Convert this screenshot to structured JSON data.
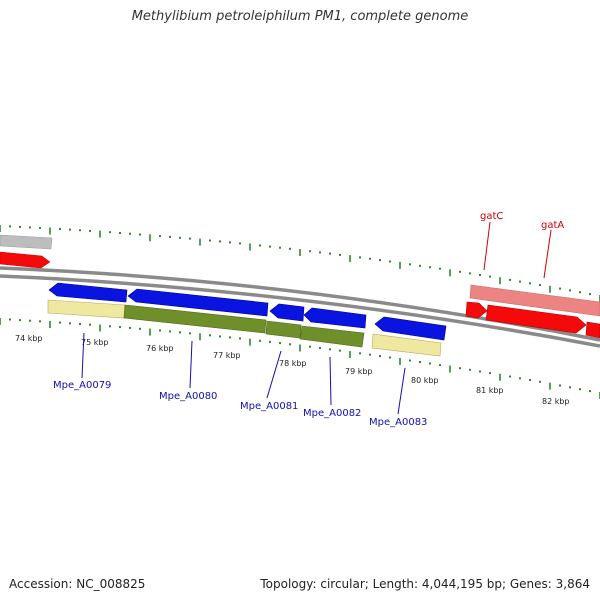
{
  "header": {
    "title": "Methylibium petroleiphilum PM1, complete genome"
  },
  "footer": {
    "accession": "Accession: NC_008825",
    "stats": "Topology: circular; Length: 4,044,195 bp; Genes: 3,864"
  },
  "colors": {
    "backbone": "#7a7a7a",
    "cds_forward": "#0a14e0",
    "cds_reverse_red": "#f40a0a",
    "rna_pink": "#ec8484",
    "grey_feature": "#bdbdbd",
    "cog_yellow": "#efe8a0",
    "cog_green": "#6f8f2a",
    "tick": "#2a8a2a",
    "label_blue": "#1010b0",
    "label_red": "#d00000"
  },
  "scale_labels": [
    "74 kbp",
    "75 kbp",
    "76 kbp",
    "77 kbp",
    "78 kbp",
    "79 kbp",
    "80 kbp",
    "81 kbp",
    "82 kbp"
  ],
  "gene_labels": [
    {
      "text": "Mpe_A0079",
      "color": "blue"
    },
    {
      "text": "Mpe_A0080",
      "color": "blue"
    },
    {
      "text": "Mpe_A0081",
      "color": "blue"
    },
    {
      "text": "Mpe_A0082",
      "color": "blue"
    },
    {
      "text": "Mpe_A0083",
      "color": "blue"
    },
    {
      "text": "gatC",
      "color": "red"
    },
    {
      "text": "gatA",
      "color": "red"
    }
  ]
}
